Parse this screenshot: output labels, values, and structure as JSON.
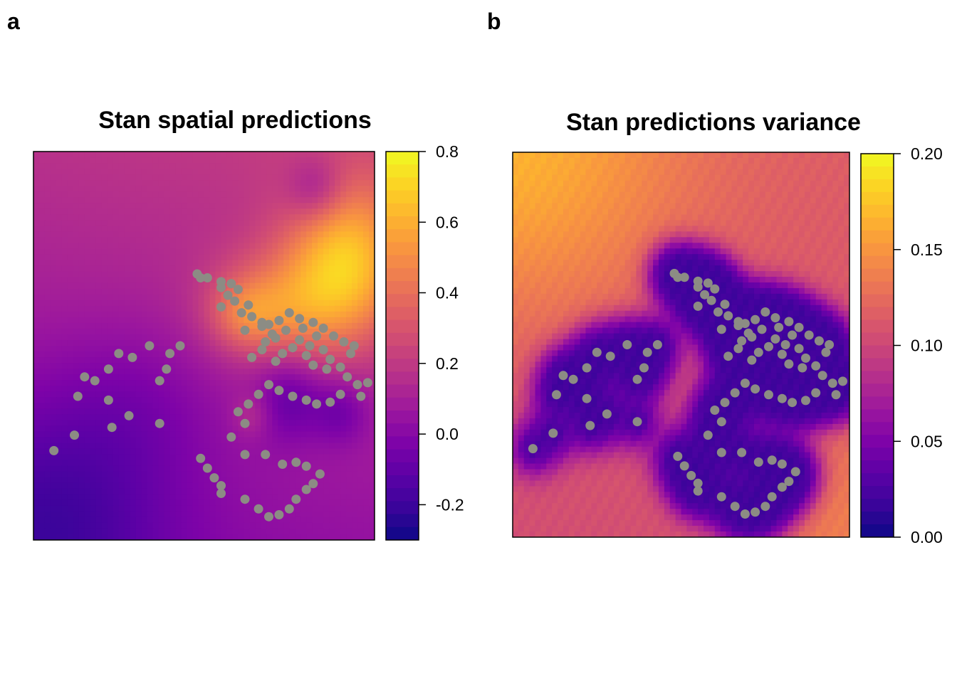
{
  "panels": [
    {
      "letter": "a"
    },
    {
      "letter": "b"
    }
  ],
  "colors": {
    "palette": [
      "#0d0887",
      "#3a049a",
      "#5c01a6",
      "#7e03a8",
      "#9c179e",
      "#b52f8c",
      "#cc4778",
      "#de5f65",
      "#ed7953",
      "#f89540",
      "#fdb42f",
      "#fbd524",
      "#f0f921"
    ],
    "points": "#8c8c84",
    "frame": "#000000"
  },
  "chart_data": [
    {
      "type": "heatmap",
      "title": "Stan spatial predictions",
      "xlabel": "",
      "ylabel": "",
      "colorbar": {
        "range": [
          -0.3,
          0.8
        ],
        "ticks": [
          0.8,
          0.6,
          0.4,
          0.2,
          0.0,
          -0.2
        ],
        "tick_labels": [
          "0.8",
          "0.6",
          "0.4",
          "0.2",
          "0.0",
          "-0.2"
        ]
      },
      "overlay": "observation points (grey)"
    },
    {
      "type": "heatmap",
      "title": "Stan predictions variance",
      "xlabel": "",
      "ylabel": "",
      "colorbar": {
        "range": [
          0.0,
          0.2
        ],
        "ticks": [
          0.2,
          0.15,
          0.1,
          0.05,
          0.0
        ],
        "tick_labels": [
          "0.20",
          "0.15",
          "0.10",
          "0.05",
          "0.00"
        ]
      },
      "overlay": "observation points (grey)"
    }
  ]
}
